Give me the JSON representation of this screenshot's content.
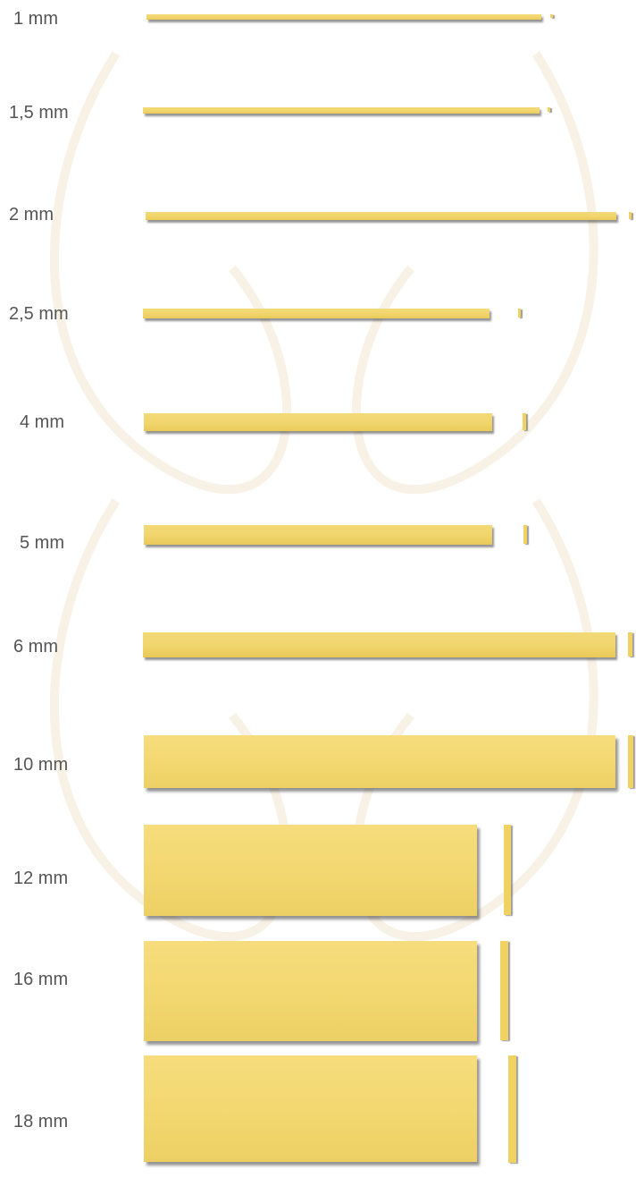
{
  "sizes": [
    {
      "label": "1 mm"
    },
    {
      "label": "1,5 mm"
    },
    {
      "label": "2 mm"
    },
    {
      "label": "2,5 mm"
    },
    {
      "label": "4 mm"
    },
    {
      "label": "5 mm"
    },
    {
      "label": "6 mm"
    },
    {
      "label": "10 mm"
    },
    {
      "label": "12 mm"
    },
    {
      "label": "16 mm"
    },
    {
      "label": "18 mm"
    }
  ],
  "colors": {
    "pasta": "#f1d56c",
    "label": "#555555",
    "background": "#ffffff"
  }
}
